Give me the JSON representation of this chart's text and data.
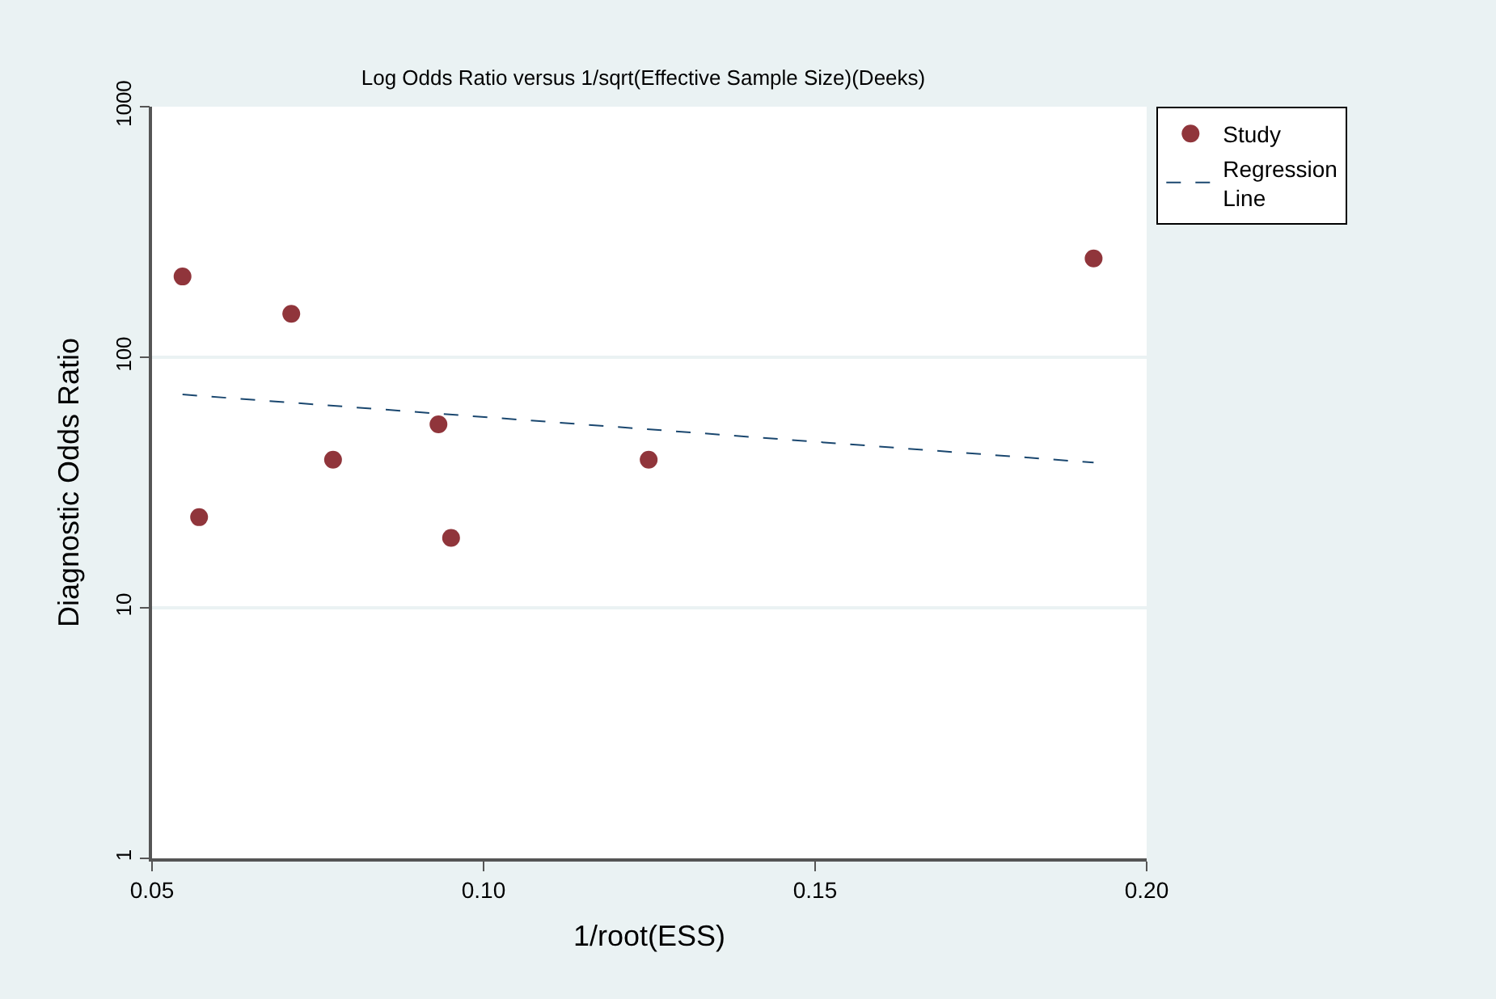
{
  "chart_data": {
    "type": "scatter",
    "title": "Log Odds Ratio versus 1/sqrt(Effective Sample Size)(Deeks)",
    "xlabel": "1/root(ESS)",
    "ylabel": "Diagnostic Odds Ratio",
    "log": "y",
    "xlim": [
      0.05,
      0.2
    ],
    "xticks": [
      {
        "value": 0.05,
        "label": "0.05"
      },
      {
        "value": 0.1,
        "label": "0.10"
      },
      {
        "value": 0.15,
        "label": "0.15"
      },
      {
        "value": 0.2,
        "label": "0.20"
      }
    ],
    "ylim": [
      1,
      1000
    ],
    "yticks": [
      1,
      10,
      100,
      1000
    ],
    "grid": "y",
    "legend": "top right",
    "series": [
      {
        "name": "Study",
        "color": "#90353b",
        "marker": "circle",
        "x": [
          0.0546,
          0.0571,
          0.071,
          0.0773,
          0.0932,
          0.0951,
          0.1249,
          0.192
        ],
        "values": [
          210,
          23,
          149,
          39,
          54,
          19,
          39,
          248
        ]
      },
      {
        "name": "Regression Line",
        "type": "line",
        "color": "#1a476f",
        "line_style": "dashed",
        "marker": "none",
        "x": [
          0.0546,
          0.192
        ],
        "values": [
          71,
          38
        ]
      }
    ]
  }
}
